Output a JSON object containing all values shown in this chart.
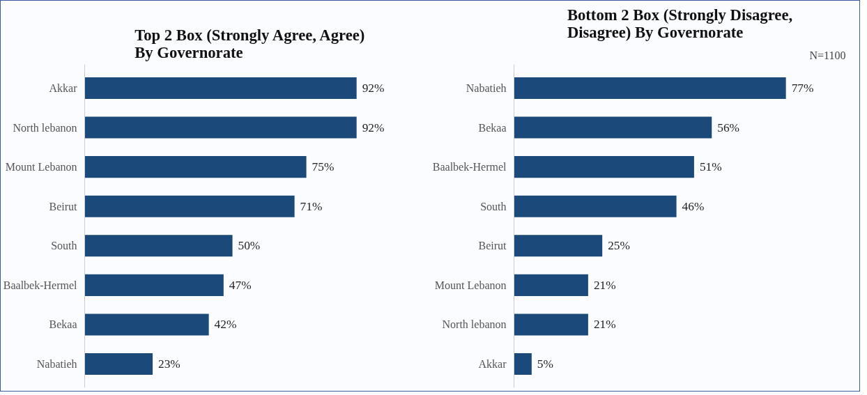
{
  "chart_data": [
    {
      "type": "bar",
      "orientation": "horizontal",
      "title": "Top 2 Box (Strongly Agree, Agree)\nBy Governorate",
      "categories": [
        "Akkar",
        "North lebanon",
        "Mount Lebanon",
        "Beirut",
        "South",
        "Baalbek-Hermel",
        "Bekaa",
        "Nabatieh"
      ],
      "values": [
        92,
        92,
        75,
        71,
        50,
        47,
        42,
        23
      ],
      "value_labels": [
        "92%",
        "92%",
        "75%",
        "71%",
        "50%",
        "47%",
        "42%",
        "23%"
      ],
      "color": "#1b4a7a",
      "grid": false,
      "tick_labels": "y"
    },
    {
      "type": "bar",
      "orientation": "horizontal",
      "title": "Bottom 2 Box (Strongly Disagree,\nDisagree) By Governorate",
      "categories": [
        "Nabatieh",
        "Bekaa",
        "Baalbek-Hermel",
        "South",
        "Beirut",
        "Mount Lebanon",
        "North lebanon",
        "Akkar"
      ],
      "values": [
        77,
        56,
        51,
        46,
        25,
        21,
        21,
        5
      ],
      "value_labels": [
        "77%",
        "56%",
        "51%",
        "46%",
        "25%",
        "21%",
        "21%",
        "5%"
      ],
      "color": "#1b4a7a",
      "grid": false,
      "tick_labels": "y",
      "annotations": [
        "N=1100"
      ]
    }
  ]
}
